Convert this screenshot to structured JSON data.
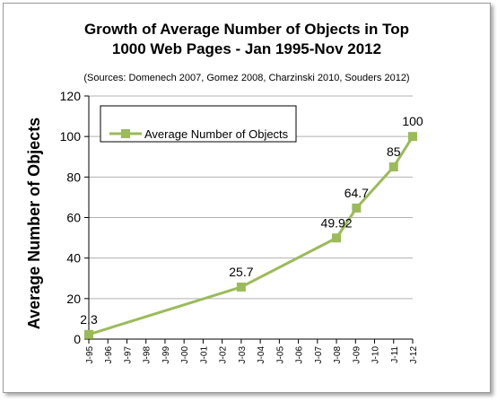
{
  "chart_data": {
    "type": "line",
    "title_line1": "Growth of Average Number of Objects in  Top",
    "title_line2": "1000 Web Pages - Jan 1995-Nov 2012",
    "subtitle": "(Sources: Domenech 2007, Gomez 2008, Charzinski 2010, Souders 2012)",
    "ylabel": "Average  Number of Objects",
    "xlabel": "",
    "ylim": [
      0,
      120
    ],
    "yticks": [
      0,
      20,
      40,
      60,
      80,
      100,
      120
    ],
    "categories": [
      "J-95",
      "J-96",
      "J-97",
      "J-98",
      "J-99",
      "J-00",
      "J-01",
      "J-02",
      "J-03",
      "J-04",
      "J-05",
      "J-06",
      "J-07",
      "J-08",
      "J-09",
      "J-10",
      "J-11",
      "J-12"
    ],
    "series": [
      {
        "name": "Average Number of Objects",
        "color": "#9bbb59",
        "points": [
          {
            "x": 1995.0,
            "y": 2.3,
            "label": "2.3"
          },
          {
            "x": 2003.0,
            "y": 25.7,
            "label": "25.7"
          },
          {
            "x": 2008.0,
            "y": 49.92,
            "label": "49.92"
          },
          {
            "x": 2009.05,
            "y": 64.7,
            "label": "64.7"
          },
          {
            "x": 2011.0,
            "y": 85,
            "label": "85"
          },
          {
            "x": 2012.0,
            "y": 100,
            "label": "100"
          }
        ]
      }
    ],
    "grid": "major y only",
    "legend_position": "top-left"
  }
}
